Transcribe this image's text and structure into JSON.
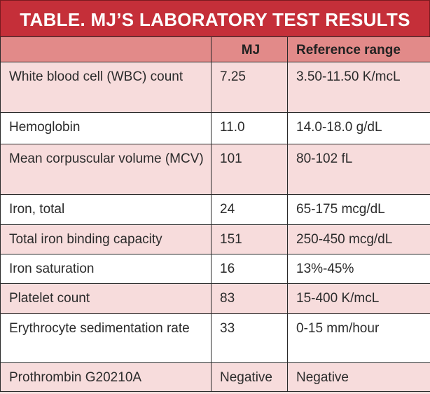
{
  "title": "TABLE. MJ’S LABORATORY TEST RESULTS",
  "columns": [
    "",
    "MJ",
    "Reference range"
  ],
  "rows": [
    {
      "test": "White blood cell (WBC) count",
      "mj": "7.25",
      "ref": "3.50-11.50 K/mcL"
    },
    {
      "test": "Hemoglobin",
      "mj": "11.0",
      "ref": "14.0-18.0 g/dL"
    },
    {
      "test": "Mean corpuscular volume (MCV)",
      "mj": "101",
      "ref": "80-102 fL"
    },
    {
      "test": "Iron, total",
      "mj": "24",
      "ref": "65-175 mcg/dL"
    },
    {
      "test": "Total iron binding capacity",
      "mj": "151",
      "ref": "250-450 mcg/dL"
    },
    {
      "test": "Iron saturation",
      "mj": "16",
      "ref": "13%-45%"
    },
    {
      "test": "Platelet count",
      "mj": "83",
      "ref": "15-400 K/mcL"
    },
    {
      "test": "Erythrocyte sedimentation rate",
      "mj": "33",
      "ref": "0-15 mm/hour"
    },
    {
      "test": "Prothrombin G20210A",
      "mj": "Negative",
      "ref": "Negative"
    }
  ],
  "colors": {
    "title_bg": "#c52f39",
    "header_bg": "#e28a89",
    "row_pink": "#f7dcdc",
    "row_white": "#ffffff"
  }
}
